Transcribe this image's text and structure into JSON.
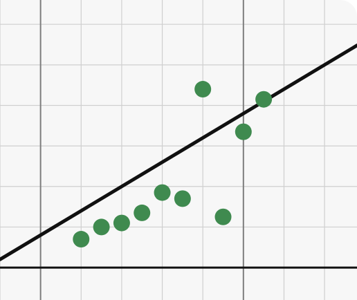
{
  "chart_data": {
    "type": "scatter",
    "title": "",
    "xlabel": "",
    "ylabel": "",
    "xlim": [
      -1,
      7.8
    ],
    "ylim": [
      -0.8,
      6.6
    ],
    "grid": true,
    "grid_x_step": 1,
    "grid_y_step": 1,
    "axis_x_at_y": 0,
    "axis_y_at_x": 0,
    "axis_marks_x": [
      0,
      5
    ],
    "points": {
      "x": [
        1,
        1.5,
        2,
        2.5,
        3,
        3.5,
        4,
        4.5,
        5,
        5.5
      ],
      "y": [
        0.7,
        1.0,
        1.1,
        1.35,
        1.85,
        1.7,
        4.4,
        1.25,
        3.35,
        4.15
      ]
    },
    "trend_line": {
      "slope": 0.6,
      "intercept": 0.8
    },
    "colors": {
      "points": "#3f8a4f",
      "line": "#111111",
      "grid": "#cfcfcf",
      "axis": "#7d7d7d",
      "x_axis": "#111111",
      "background": "#f7f7f7"
    }
  }
}
